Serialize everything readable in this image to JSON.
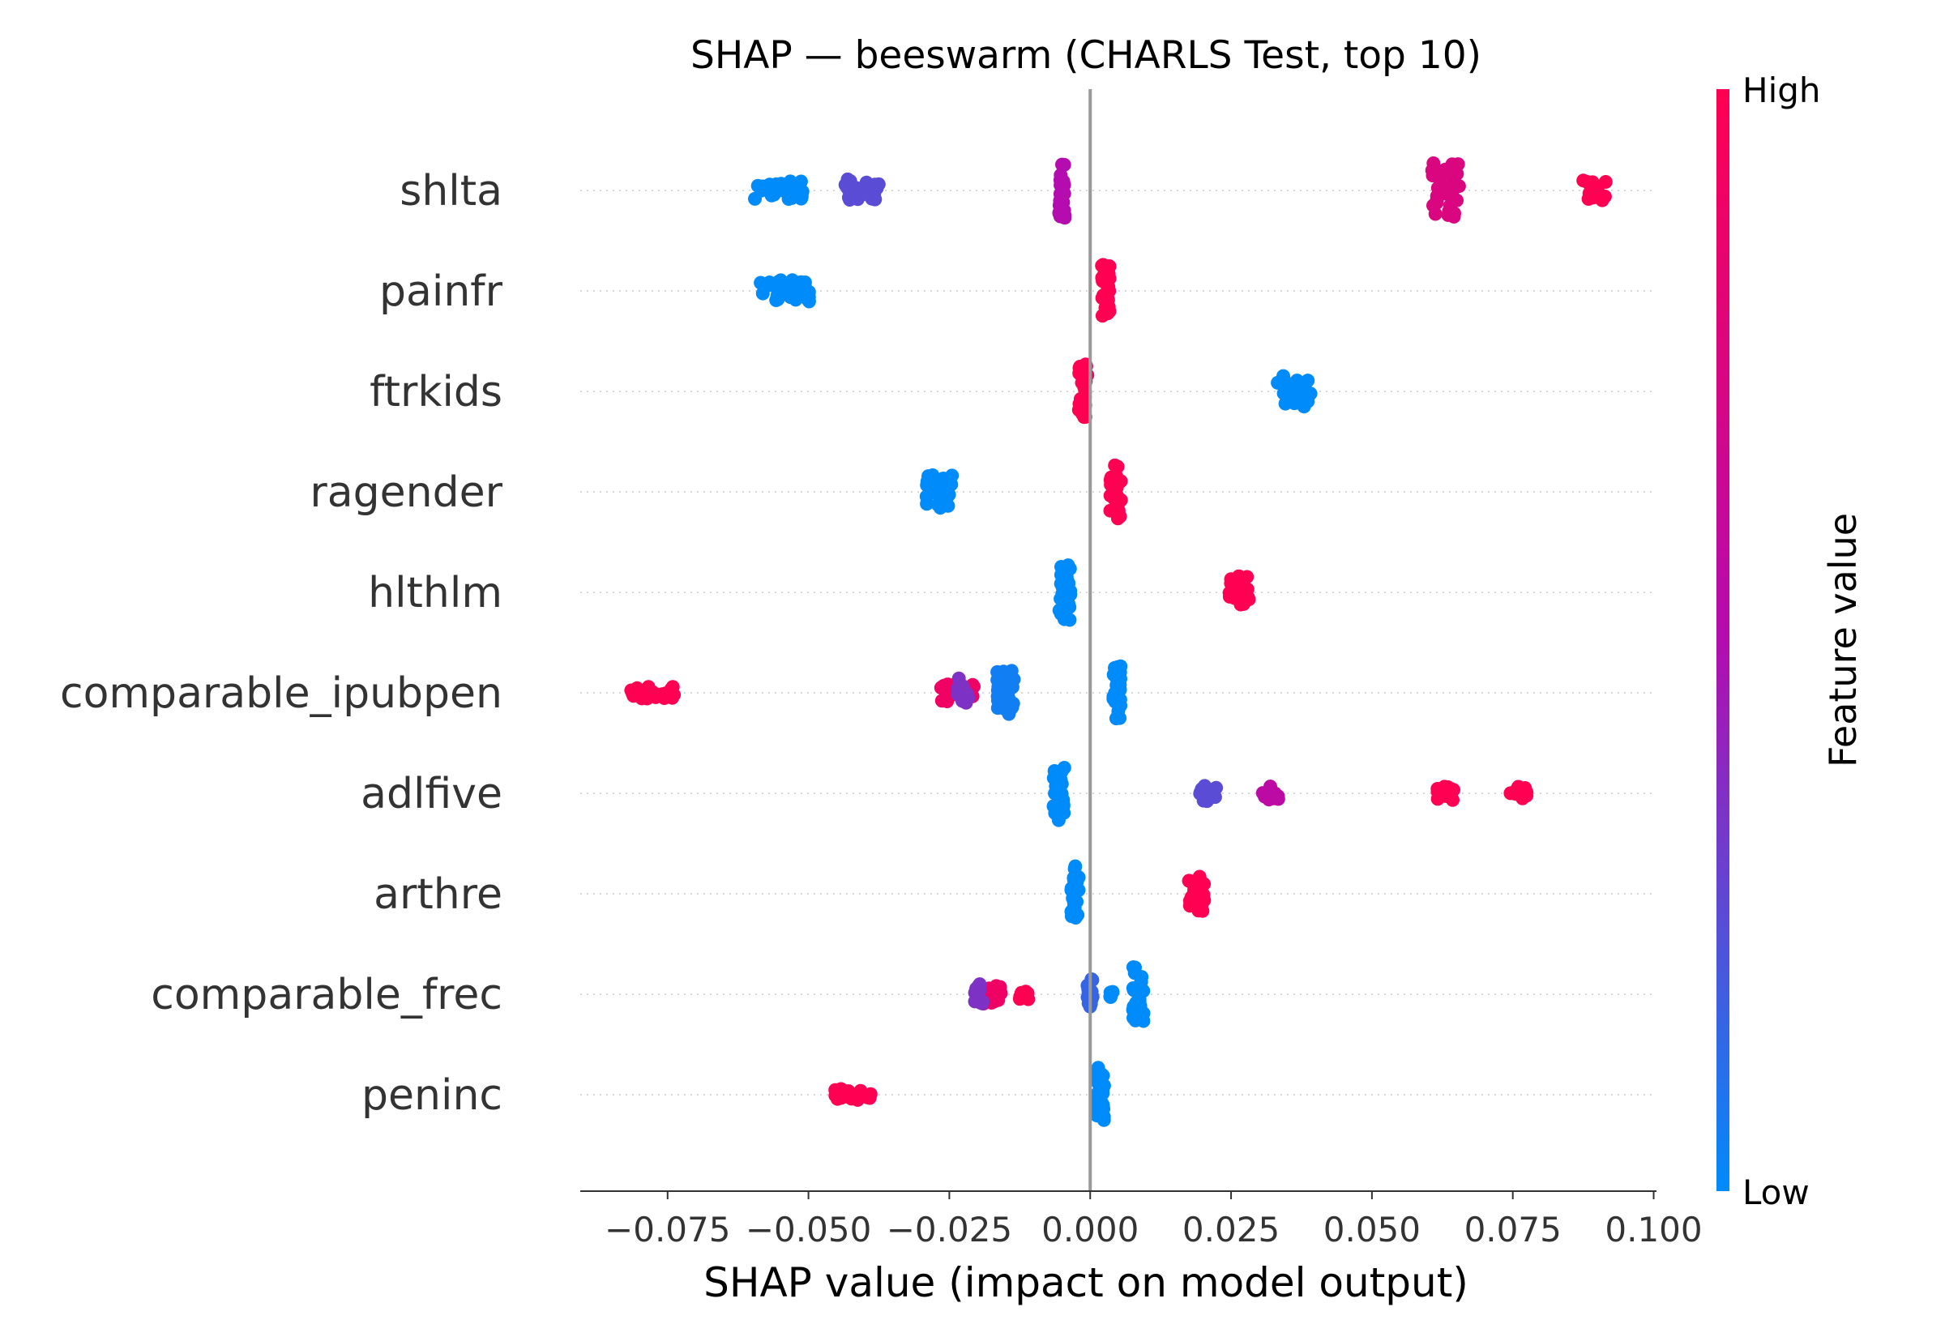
{
  "chart_data": {
    "type": "scatter",
    "subtype": "beeswarm",
    "title": "SHAP — beeswarm (CHARLS Test, top 10)",
    "xlabel": "SHAP value (impact on model output)",
    "xlim": [
      -0.0905,
      0.1005
    ],
    "xticks": [
      -0.075,
      -0.05,
      -0.025,
      0.0,
      0.025,
      0.05,
      0.075,
      0.1
    ],
    "xtick_labels": [
      "−0.075",
      "−0.050",
      "−0.025",
      "0.000",
      "0.025",
      "0.050",
      "0.075",
      "0.100"
    ],
    "colorbar": {
      "label": "Feature value",
      "high": "High",
      "low": "Low"
    },
    "colors": {
      "low": "#008bfb",
      "mid": "#b40cae",
      "high": "#ff0052",
      "zero_line": "#999999"
    },
    "features": [
      {
        "name": "shlta",
        "clusters": [
          {
            "x0": -0.0595,
            "x1": -0.0505,
            "spread": 0.2,
            "value": 0.0
          },
          {
            "x0": -0.0435,
            "x1": -0.0375,
            "spread": 0.22,
            "value": 0.25
          },
          {
            "x0": -0.0055,
            "x1": -0.0045,
            "spread": 0.55,
            "value": 0.5
          },
          {
            "x0": 0.0605,
            "x1": 0.0655,
            "spread": 0.55,
            "value": 0.75
          },
          {
            "x0": 0.0875,
            "x1": 0.0915,
            "spread": 0.2,
            "value": 1.0
          }
        ]
      },
      {
        "name": "painfr",
        "clusters": [
          {
            "x0": -0.0585,
            "x1": -0.0495,
            "spread": 0.22,
            "value": 0.0
          },
          {
            "x0": 0.002,
            "x1": 0.0035,
            "spread": 0.55,
            "value": 1.0
          }
        ]
      },
      {
        "name": "ftrkids",
        "clusters": [
          {
            "x0": -0.002,
            "x1": -0.0005,
            "spread": 0.55,
            "value": 1.0
          },
          {
            "x0": 0.033,
            "x1": 0.0395,
            "spread": 0.32,
            "value": 0.0
          }
        ]
      },
      {
        "name": "ragender",
        "clusters": [
          {
            "x0": -0.0295,
            "x1": -0.0245,
            "spread": 0.35,
            "value": 0.0
          },
          {
            "x0": 0.0035,
            "x1": 0.0055,
            "spread": 0.55,
            "value": 1.0
          }
        ]
      },
      {
        "name": "hlthlm",
        "clusters": [
          {
            "x0": -0.0055,
            "x1": -0.0035,
            "spread": 0.55,
            "value": 0.0
          },
          {
            "x0": 0.0245,
            "x1": 0.0285,
            "spread": 0.32,
            "value": 1.0
          }
        ]
      },
      {
        "name": "comparable_ipubpen",
        "clusters": [
          {
            "x0": -0.0815,
            "x1": -0.0735,
            "spread": 0.12,
            "value": 1.0
          },
          {
            "x0": -0.0265,
            "x1": -0.0205,
            "spread": 0.18,
            "value": 0.9
          },
          {
            "x0": -0.0235,
            "x1": -0.0215,
            "spread": 0.3,
            "value": 0.35
          },
          {
            "x0": -0.0165,
            "x1": -0.0135,
            "spread": 0.45,
            "value": 0.05
          },
          {
            "x0": 0.004,
            "x1": 0.0055,
            "spread": 0.55,
            "value": 0.0
          }
        ]
      },
      {
        "name": "adlfive",
        "clusters": [
          {
            "x0": -0.0065,
            "x1": -0.0045,
            "spread": 0.55,
            "value": 0.0
          },
          {
            "x0": 0.0195,
            "x1": 0.0225,
            "spread": 0.16,
            "value": 0.25
          },
          {
            "x0": 0.0305,
            "x1": 0.0335,
            "spread": 0.14,
            "value": 0.55
          },
          {
            "x0": 0.0615,
            "x1": 0.0645,
            "spread": 0.14,
            "value": 1.0
          },
          {
            "x0": 0.0745,
            "x1": 0.0775,
            "spread": 0.14,
            "value": 1.0
          }
        ]
      },
      {
        "name": "arthre",
        "clusters": [
          {
            "x0": -0.0035,
            "x1": -0.002,
            "spread": 0.55,
            "value": 0.0
          },
          {
            "x0": 0.0175,
            "x1": 0.0205,
            "spread": 0.35,
            "value": 1.0
          }
        ]
      },
      {
        "name": "comparable_frec",
        "clusters": [
          {
            "x0": -0.0195,
            "x1": -0.0155,
            "spread": 0.2,
            "value": 0.9
          },
          {
            "x0": -0.0205,
            "x1": -0.019,
            "spread": 0.2,
            "value": 0.35
          },
          {
            "x0": -0.0125,
            "x1": -0.011,
            "spread": 0.1,
            "value": 1.0
          },
          {
            "x0": -0.0005,
            "x1": 0.0005,
            "spread": 0.3,
            "value": 0.15
          },
          {
            "x0": 0.0035,
            "x1": 0.004,
            "spread": 0.06,
            "value": 0.0
          },
          {
            "x0": 0.0075,
            "x1": 0.0095,
            "spread": 0.55,
            "value": 0.0
          }
        ]
      },
      {
        "name": "peninc",
        "clusters": [
          {
            "x0": -0.0455,
            "x1": -0.0375,
            "spread": 0.12,
            "value": 1.0
          },
          {
            "x0": 0.001,
            "x1": 0.0025,
            "spread": 0.55,
            "value": 0.0
          }
        ]
      }
    ]
  }
}
